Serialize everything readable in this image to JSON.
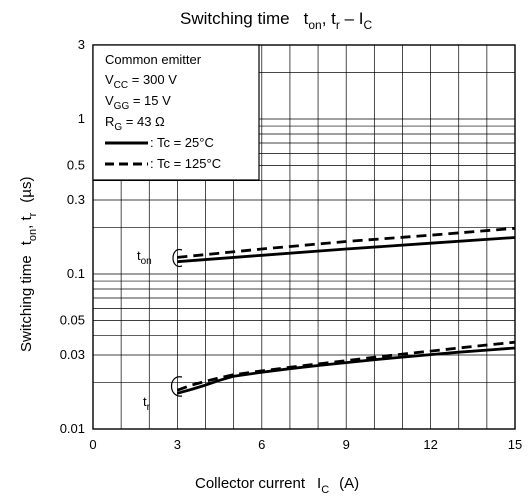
{
  "chart_data": {
    "type": "line",
    "title": {
      "main": "Switching time",
      "p1": "t",
      "p1s": "on",
      "p2": ", t",
      "p2s": "r",
      "p3": " – I",
      "p3s": "C"
    },
    "xlabel": {
      "main": "Collector current",
      "sym": "I",
      "sub": "C",
      "unit": "(A)"
    },
    "ylabel": {
      "main": "Switching time",
      "s1": "t",
      "s1s": "on",
      "s2": ", t",
      "s2s": "r",
      "unit": "(µs)"
    },
    "xlim": [
      0,
      15
    ],
    "ylim": [
      0.01,
      3
    ],
    "y_scale": "log",
    "x_ticks": [
      0,
      3,
      6,
      9,
      12,
      15
    ],
    "x_tick_labels": [
      "0",
      "3",
      "6",
      "9",
      "12",
      "15"
    ],
    "y_ticks": [
      0.01,
      0.03,
      0.05,
      0.1,
      0.3,
      0.5,
      1,
      3
    ],
    "y_tick_labels": [
      "0.01",
      "0.03",
      "0.05",
      "0.1",
      "0.3",
      "0.5",
      "1",
      "3"
    ],
    "grid": true,
    "conditions": {
      "l1": "Common emitter",
      "l2a": "V",
      "l2s": "CC",
      "l2b": " = 300 V",
      "l3a": "V",
      "l3s": "GG",
      "l3b": " = 15 V",
      "l4a": "R",
      "l4s": "G",
      "l4b": " = 43 Ω",
      "legend_25": ": Tc = 25°C",
      "legend_125": ": Tc = 125°C"
    },
    "curve_labels": {
      "ton": {
        "t": "t",
        "s": "on"
      },
      "tr": {
        "t": "t",
        "s": "r"
      }
    },
    "series": [
      {
        "id": "ton-25",
        "style": "solid",
        "x": [
          3,
          6,
          9,
          12,
          15
        ],
        "y": [
          0.12,
          0.132,
          0.145,
          0.158,
          0.172
        ]
      },
      {
        "id": "ton-125",
        "style": "dashed",
        "x": [
          3,
          6,
          9,
          12,
          15
        ],
        "y": [
          0.128,
          0.145,
          0.162,
          0.178,
          0.197
        ]
      },
      {
        "id": "tr-25",
        "style": "solid",
        "x": [
          3,
          3.5,
          4,
          4.5,
          5,
          6,
          7,
          8,
          9,
          10,
          11,
          12,
          13,
          14,
          15
        ],
        "y": [
          0.017,
          0.018,
          0.0192,
          0.0206,
          0.0219,
          0.0232,
          0.0245,
          0.0257,
          0.0268,
          0.028,
          0.0291,
          0.0302,
          0.0313,
          0.0323,
          0.0333
        ]
      },
      {
        "id": "tr-125",
        "style": "dashed",
        "x": [
          3,
          3.5,
          4,
          4.5,
          5,
          6,
          7,
          8,
          9,
          10,
          11,
          12,
          13,
          14,
          15
        ],
        "y": [
          0.0178,
          0.0192,
          0.0203,
          0.0214,
          0.0224,
          0.0237,
          0.025,
          0.0263,
          0.0276,
          0.029,
          0.0304,
          0.0318,
          0.0333,
          0.0348,
          0.0363
        ]
      }
    ]
  }
}
